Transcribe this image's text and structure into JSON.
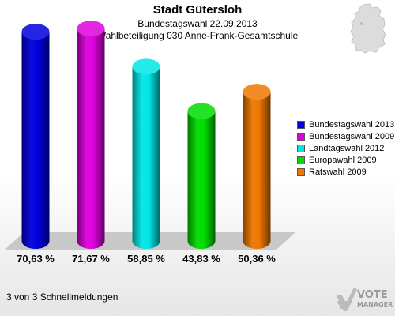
{
  "header": {
    "title": "Stadt Gütersloh",
    "subtitle": "Bundestagswahl 22.09.2013",
    "subtitle2": "Wahlbeteiligung 030 Anne-Frank-Gesamtschule"
  },
  "chart_data": {
    "type": "bar",
    "title": "Stadt Gütersloh",
    "subtitle": "Bundestagswahl 22.09.2013 / Wahlbeteiligung 030 Anne-Frank-Gesamtschule",
    "categories": [
      "Bundestagswahl 2013",
      "Bundestagswahl 2009",
      "Landtagswahl 2012",
      "Europawahl 2009",
      "Ratswahl 2009"
    ],
    "values": [
      70.63,
      71.67,
      58.85,
      43.83,
      50.36
    ],
    "data_labels": [
      "70,63 %",
      "71,67 %",
      "58,85 %",
      "43,83 %",
      "50,36 %"
    ],
    "colors": [
      "#0000dd",
      "#dd00dd",
      "#00e6e6",
      "#00dd00",
      "#ee7700"
    ],
    "ylim": [
      0,
      80
    ],
    "grid": false,
    "legend": "right"
  },
  "footer": {
    "text": "3 von 3 Schnellmeldungen"
  },
  "logo": {
    "line1": "VOTE",
    "line2": "MANAGER"
  }
}
